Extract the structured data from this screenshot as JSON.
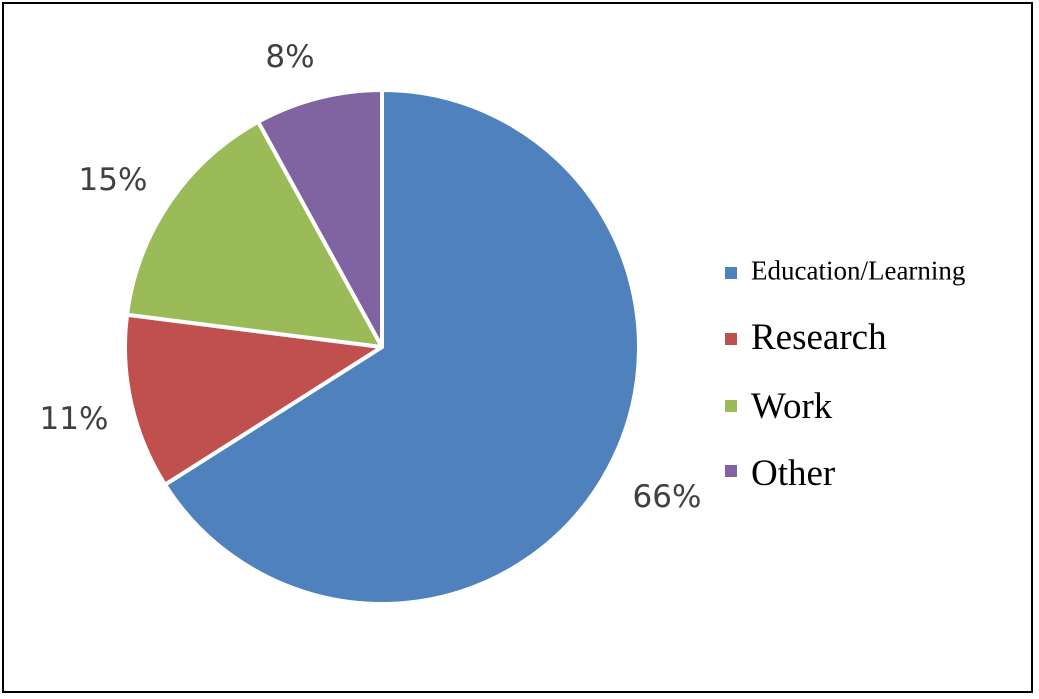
{
  "chart_data": {
    "type": "pie",
    "start_angle_deg": 0,
    "direction": "clockwise",
    "legend_position": "right",
    "slices": [
      {
        "label": "Education/Learning",
        "value": 66,
        "display": "66%",
        "color": "#4f81bd"
      },
      {
        "label": "Research",
        "value": 11,
        "display": "11%",
        "color": "#c0504d"
      },
      {
        "label": "Work",
        "value": 15,
        "display": "15%",
        "color": "#9bbb59"
      },
      {
        "label": "Other",
        "value": 8,
        "display": "8%",
        "color": "#8064a2"
      }
    ]
  }
}
